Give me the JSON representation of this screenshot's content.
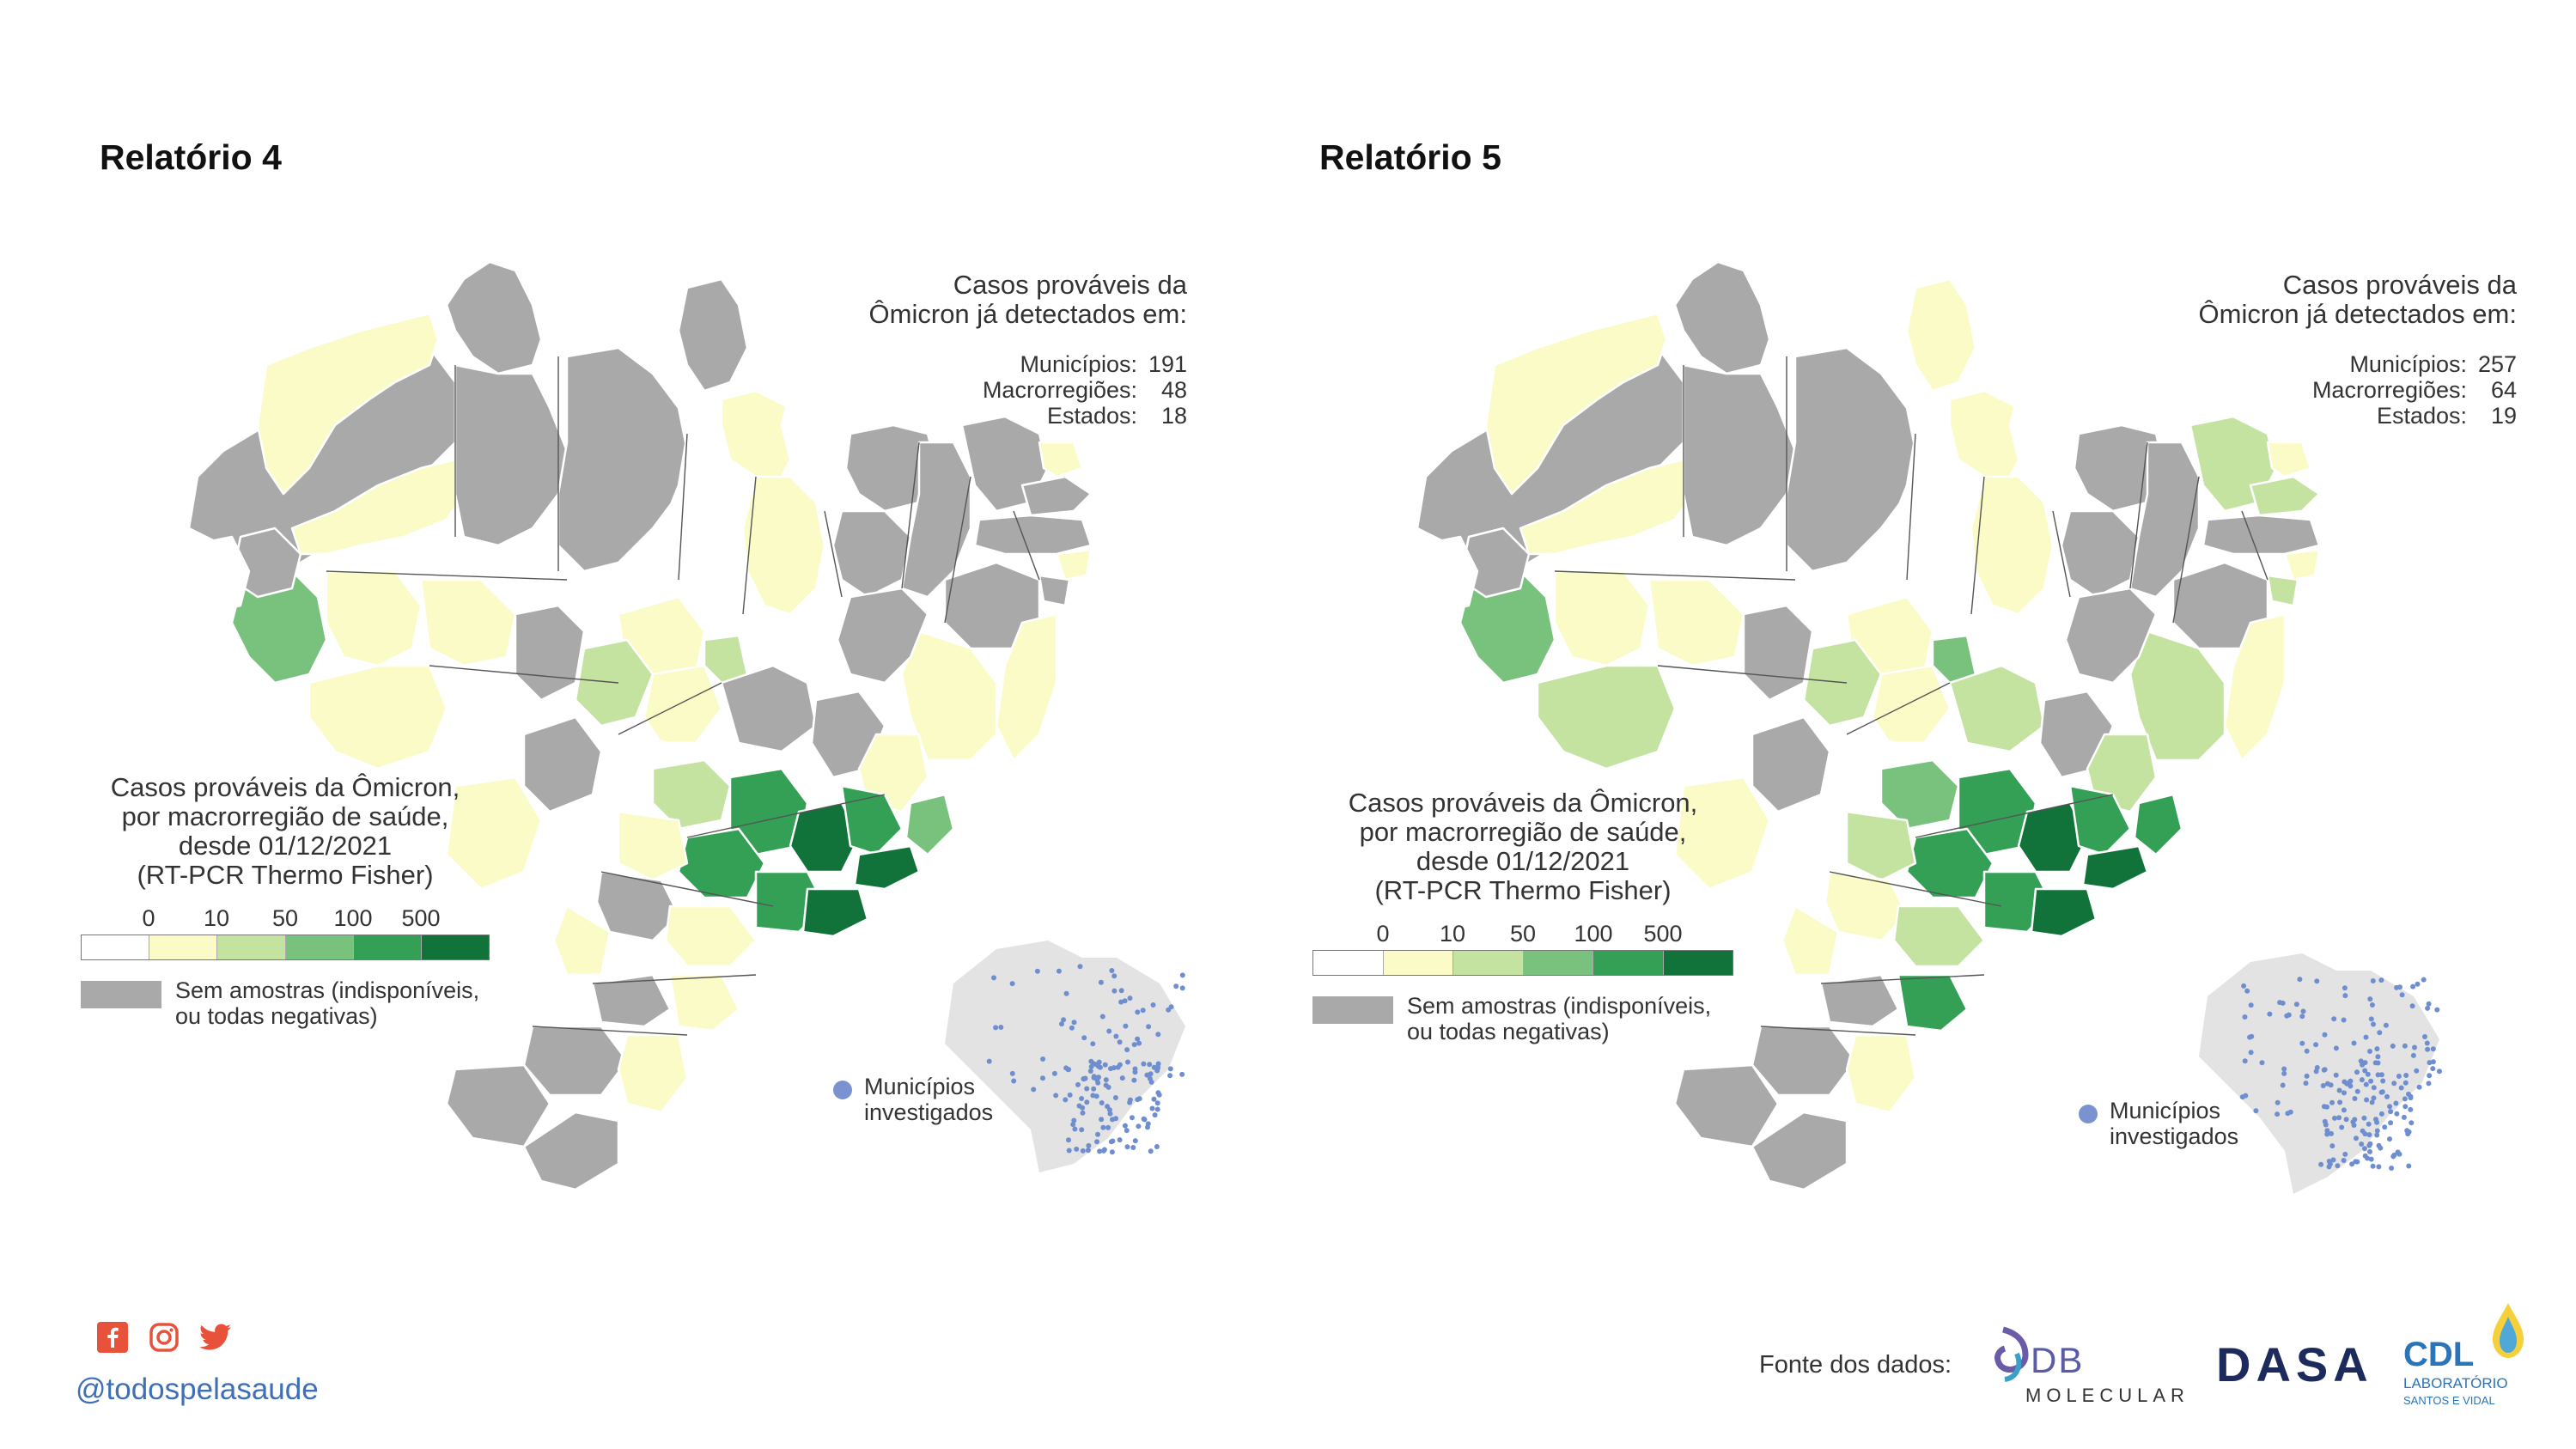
{
  "colors": {
    "scale": [
      "#ffffff",
      "#fbfbc8",
      "#c4e3a0",
      "#78c27e",
      "#34a055",
      "#12733a"
    ],
    "no_data": "#a9a9a9",
    "mini_map_land": "#e3e3e3",
    "mini_map_dot": "#6e8ed0",
    "handle": "#3f6fb5",
    "social_icons": "#e8523b"
  },
  "panels": [
    {
      "title": "Relatório 4",
      "stats": {
        "title": "Casos prováveis da Ômicron já detectados em:",
        "title_line1": "Casos prováveis da",
        "title_line2": "Ômicron já detectados em:",
        "rows": [
          {
            "label": "Municípios:",
            "value": "191"
          },
          {
            "label": "Macrorregiões:",
            "value": "48"
          },
          {
            "label": "Estados:",
            "value": "18"
          }
        ]
      },
      "legend": {
        "title_lines": [
          "Casos prováveis da Ômicron,",
          "por macrorregião de saúde,",
          "desde 01/12/2021",
          "(RT-PCR Thermo Fisher)"
        ],
        "ticks": [
          "0",
          "10",
          "50",
          "100",
          "500"
        ],
        "no_data_lines": [
          "Sem amostras (indisponíveis,",
          "ou todas negativas)"
        ]
      },
      "mini_map": {
        "label_lines": [
          "Municípios",
          "investigados"
        ]
      }
    },
    {
      "title": "Relatório 5",
      "stats": {
        "title_line1": "Casos prováveis da",
        "title_line2": "Ômicron já detectados em:",
        "rows": [
          {
            "label": "Municípios:",
            "value": "257"
          },
          {
            "label": "Macrorregiões:",
            "value": "64"
          },
          {
            "label": "Estados:",
            "value": "19"
          }
        ]
      },
      "legend": {
        "title_lines": [
          "Casos prováveis da Ômicron,",
          "por macrorregião de saúde,",
          "desde 01/12/2021",
          "(RT-PCR Thermo Fisher)"
        ],
        "ticks": [
          "0",
          "10",
          "50",
          "100",
          "500"
        ],
        "no_data_lines": [
          "Sem amostras (indisponíveis,",
          "ou todas negativas)"
        ]
      },
      "mini_map": {
        "label_lines": [
          "Municípios",
          "investigados"
        ]
      }
    }
  ],
  "footer": {
    "social_icons": [
      "facebook-icon",
      "instagram-icon",
      "twitter-icon"
    ],
    "handle": "@todospelasaude",
    "source_label": "Fonte dos dados:",
    "logos": {
      "db_molecular": {
        "top": "DB",
        "bottom": "MOLECULAR"
      },
      "dasa": "DASA",
      "cdl": {
        "top": "CDL",
        "line2": "LABORATÓRIO",
        "line3": "SANTOS E VIDAL"
      }
    }
  }
}
